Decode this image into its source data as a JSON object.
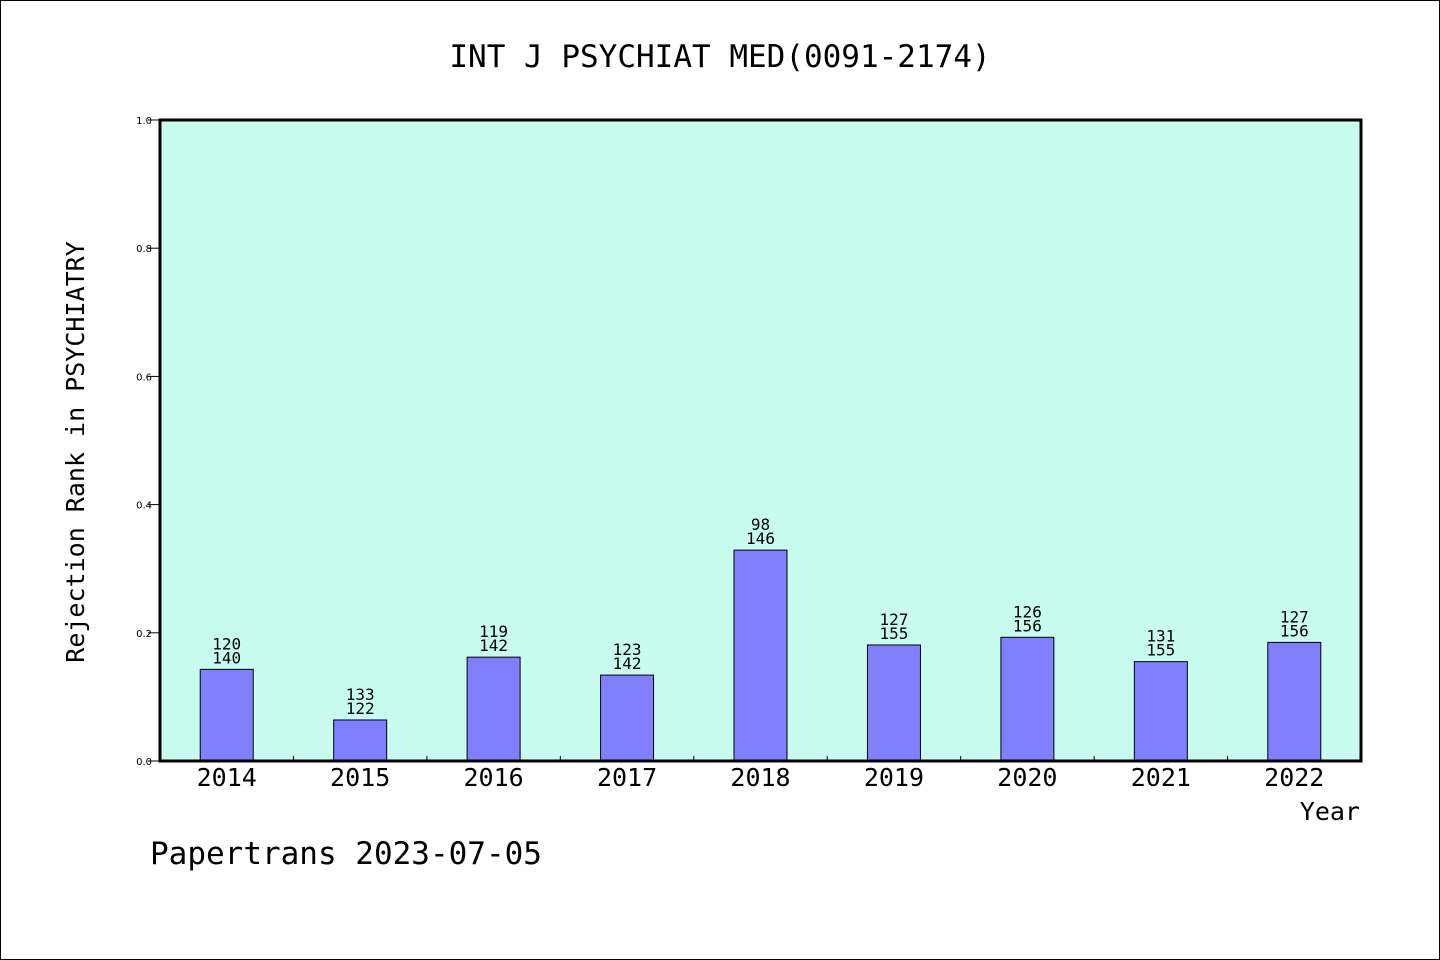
{
  "chart_data": {
    "type": "bar",
    "title": "INT J PSYCHIAT MED(0091-2174)",
    "xlabel": "Year",
    "ylabel": "Rejection Rank in PSYCHIATRY",
    "ylim": [
      0,
      1.0
    ],
    "yticks": [
      "0.0",
      "0.2",
      "0.4",
      "0.6",
      "0.8",
      "1.0"
    ],
    "categories": [
      "2014",
      "2015",
      "2016",
      "2017",
      "2018",
      "2019",
      "2020",
      "2021",
      "2022"
    ],
    "values": [
      0.143,
      0.064,
      0.162,
      0.134,
      0.329,
      0.181,
      0.193,
      0.155,
      0.185
    ],
    "label_top": [
      "120",
      "133",
      "119",
      "123",
      "98",
      "127",
      "126",
      "131",
      "127"
    ],
    "label_bottom": [
      "140",
      "122",
      "142",
      "142",
      "146",
      "155",
      "156",
      "155",
      "156"
    ],
    "grid": false,
    "colors": {
      "plot_background": "#c8fcee",
      "bar_fill": "#8080ff",
      "bar_stroke": "#000000"
    }
  },
  "footer": {
    "text": "Papertrans 2023-07-05"
  }
}
